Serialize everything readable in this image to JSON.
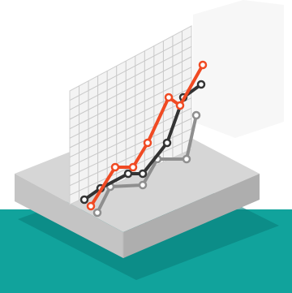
{
  "colors": {
    "background": "#ffffff",
    "floor": "#11a39c",
    "floor_shadow": "#0a7f7b",
    "platform_top": "#d6d6d6",
    "platform_front_left": "#c4c4c4",
    "platform_front_right": "#aeaeae",
    "platform_side_shadow": "#9a9a9a",
    "panel_back": "#f3f3f3",
    "grid_line": "#c8c8c8",
    "series_orange": "#f04a23",
    "series_dark": "#333333",
    "series_grey": "#8f8f8f"
  },
  "illustration": {
    "subject": "isometric-growth-line-chart",
    "series": [
      {
        "key": "orange",
        "trend": "rising",
        "points": 7
      },
      {
        "key": "dark",
        "trend": "rising",
        "points": 7
      },
      {
        "key": "grey",
        "trend": "rising",
        "points": 7
      }
    ]
  }
}
